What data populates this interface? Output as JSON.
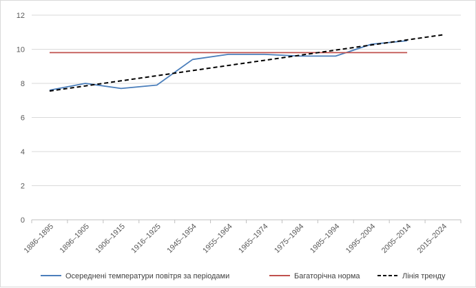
{
  "chart_data": {
    "type": "line",
    "title": "",
    "xlabel": "",
    "ylabel": "",
    "categories": [
      "1886–1895",
      "1896–1905",
      "1906–1915",
      "1916–1925",
      "1945–1954",
      "1955–1964",
      "1965–1974",
      "1975–1984",
      "1985–1994",
      "1995–2004",
      "2005–2014",
      "2015–2024"
    ],
    "ylim": [
      0,
      12
    ],
    "yticks": [
      "0",
      "2",
      "4",
      "6",
      "8",
      "10",
      "12"
    ],
    "grid": true,
    "legend_position": "bottom",
    "series": [
      {
        "name": "Осереднені температури повітря за періодами",
        "color": "#4a7ebb",
        "style": "solid",
        "values": [
          7.6,
          8.0,
          7.7,
          7.9,
          9.4,
          9.7,
          9.7,
          9.6,
          9.6,
          10.3,
          10.5,
          null
        ]
      },
      {
        "name": "Багаторічна норма",
        "color": "#c0504d",
        "style": "solid",
        "values": [
          9.8,
          9.8,
          9.8,
          9.8,
          9.8,
          9.8,
          9.8,
          9.8,
          9.8,
          9.8,
          9.8,
          null
        ]
      },
      {
        "name": "Лінія тренду",
        "color": "#000000",
        "style": "dashed",
        "values": [
          7.55,
          7.85,
          8.15,
          8.45,
          8.75,
          9.05,
          9.35,
          9.65,
          9.95,
          10.25,
          10.55,
          10.85
        ]
      }
    ]
  }
}
